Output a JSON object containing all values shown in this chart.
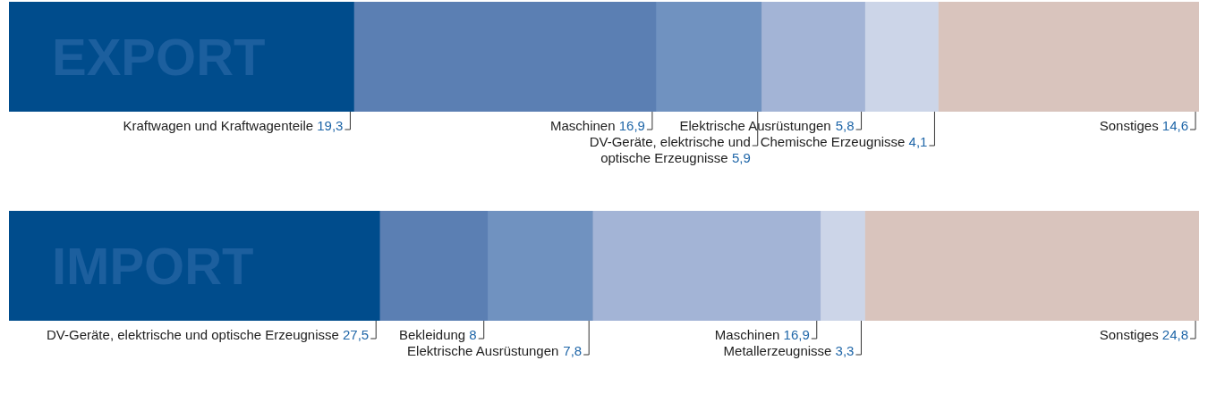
{
  "chart_data": [
    {
      "type": "bar",
      "orientation": "horizontal",
      "stacked": true,
      "title": "EXPORT",
      "categories": [
        null
      ],
      "legend": false,
      "series": [
        {
          "name": "Kraftwagen und Kraftwagenteile",
          "color": "#004c8c",
          "values": [
            19.3
          ],
          "value_labels": [
            "19,3"
          ]
        },
        {
          "name": "Maschinen",
          "color": "#5b7fb3",
          "values": [
            16.9
          ],
          "value_labels": [
            "16,9"
          ]
        },
        {
          "name": "DV-Geräte, elektrische und optische Erzeugnisse",
          "color": "#7092c0",
          "values": [
            5.9
          ],
          "value_labels": [
            "5,9"
          ]
        },
        {
          "name": "Elektrische Ausrüstungen",
          "color": "#a3b4d6",
          "values": [
            5.8
          ],
          "value_labels": [
            "5,8"
          ]
        },
        {
          "name": "Chemische Erzeugnisse",
          "color": "#ccd5e8",
          "values": [
            4.1
          ],
          "value_labels": [
            "4,1"
          ]
        },
        {
          "name": "Sonstiges",
          "color": "#d9c4bd",
          "values": [
            14.6
          ],
          "value_labels": [
            "14,6"
          ]
        }
      ]
    },
    {
      "type": "bar",
      "orientation": "horizontal",
      "stacked": true,
      "title": "IMPORT",
      "categories": [
        null
      ],
      "legend": false,
      "series": [
        {
          "name": "DV-Geräte, elektrische und optische Erzeugnisse",
          "color": "#004c8c",
          "values": [
            27.5
          ],
          "value_labels": [
            "27,5"
          ]
        },
        {
          "name": "Bekleidung",
          "color": "#5b7fb3",
          "values": [
            8
          ],
          "value_labels": [
            "8"
          ]
        },
        {
          "name": "Elektrische Ausrüstungen",
          "color": "#7092c0",
          "values": [
            7.8
          ],
          "value_labels": [
            "7,8"
          ]
        },
        {
          "name": "Maschinen",
          "color": "#a3b4d6",
          "values": [
            16.9
          ],
          "value_labels": [
            "16,9"
          ]
        },
        {
          "name": "Metallerzeugnisse",
          "color": "#ccd5e8",
          "values": [
            3.3
          ],
          "value_labels": [
            "3,3"
          ]
        },
        {
          "name": "Sonstiges",
          "color": "#d9c4bd",
          "values": [
            24.8
          ],
          "value_labels": [
            "24,8"
          ]
        }
      ]
    }
  ]
}
